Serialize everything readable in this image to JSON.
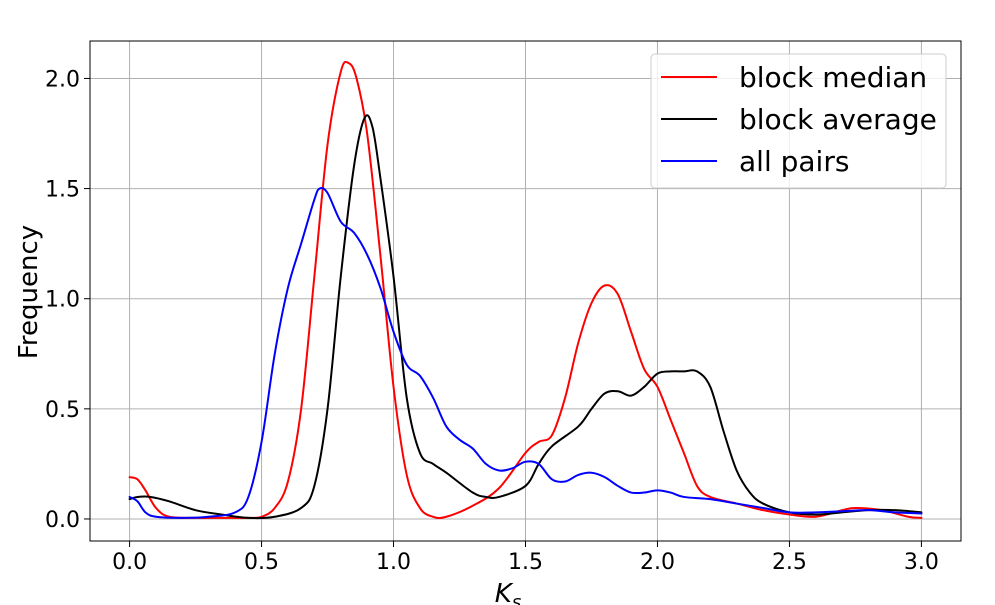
{
  "chart_data": {
    "type": "line",
    "title": "",
    "xlabel": "K",
    "xlabel_subscript": "s",
    "ylabel": "Frequency",
    "xlim": [
      -0.15,
      3.15
    ],
    "ylim": [
      -0.1,
      2.17
    ],
    "xticks": [
      0.0,
      0.5,
      1.0,
      1.5,
      2.0,
      2.5,
      3.0
    ],
    "xtick_labels": [
      "0.0",
      "0.5",
      "1.0",
      "1.5",
      "2.0",
      "2.5",
      "3.0"
    ],
    "yticks": [
      0.0,
      0.5,
      1.0,
      1.5,
      2.0
    ],
    "ytick_labels": [
      "0.0",
      "0.5",
      "1.0",
      "1.5",
      "2.0"
    ],
    "grid": true,
    "legend_position": "top-right",
    "series": [
      {
        "name": "block median",
        "color": "#ff0000",
        "points": [
          [
            0.0,
            0.19
          ],
          [
            0.03,
            0.18
          ],
          [
            0.06,
            0.13
          ],
          [
            0.1,
            0.05
          ],
          [
            0.15,
            0.01
          ],
          [
            0.25,
            0.005
          ],
          [
            0.35,
            0.005
          ],
          [
            0.45,
            0.005
          ],
          [
            0.5,
            0.01
          ],
          [
            0.55,
            0.05
          ],
          [
            0.6,
            0.17
          ],
          [
            0.65,
            0.5
          ],
          [
            0.7,
            1.1
          ],
          [
            0.75,
            1.7
          ],
          [
            0.8,
            2.03
          ],
          [
            0.83,
            2.07
          ],
          [
            0.86,
            2.0
          ],
          [
            0.9,
            1.75
          ],
          [
            0.95,
            1.2
          ],
          [
            1.0,
            0.6
          ],
          [
            1.05,
            0.2
          ],
          [
            1.1,
            0.05
          ],
          [
            1.15,
            0.01
          ],
          [
            1.2,
            0.01
          ],
          [
            1.3,
            0.06
          ],
          [
            1.4,
            0.14
          ],
          [
            1.5,
            0.3
          ],
          [
            1.55,
            0.35
          ],
          [
            1.6,
            0.38
          ],
          [
            1.65,
            0.55
          ],
          [
            1.7,
            0.8
          ],
          [
            1.75,
            0.98
          ],
          [
            1.8,
            1.06
          ],
          [
            1.85,
            1.02
          ],
          [
            1.9,
            0.85
          ],
          [
            1.95,
            0.68
          ],
          [
            2.0,
            0.6
          ],
          [
            2.05,
            0.45
          ],
          [
            2.1,
            0.3
          ],
          [
            2.15,
            0.15
          ],
          [
            2.2,
            0.1
          ],
          [
            2.3,
            0.07
          ],
          [
            2.4,
            0.04
          ],
          [
            2.5,
            0.02
          ],
          [
            2.6,
            0.01
          ],
          [
            2.7,
            0.04
          ],
          [
            2.75,
            0.05
          ],
          [
            2.85,
            0.04
          ],
          [
            2.95,
            0.01
          ],
          [
            3.0,
            0.005
          ]
        ]
      },
      {
        "name": "block average",
        "color": "#000000",
        "points": [
          [
            0.0,
            0.09
          ],
          [
            0.03,
            0.1
          ],
          [
            0.08,
            0.1
          ],
          [
            0.15,
            0.08
          ],
          [
            0.25,
            0.04
          ],
          [
            0.35,
            0.02
          ],
          [
            0.45,
            0.005
          ],
          [
            0.55,
            0.01
          ],
          [
            0.65,
            0.05
          ],
          [
            0.7,
            0.15
          ],
          [
            0.75,
            0.5
          ],
          [
            0.8,
            1.1
          ],
          [
            0.85,
            1.6
          ],
          [
            0.89,
            1.82
          ],
          [
            0.92,
            1.78
          ],
          [
            0.95,
            1.55
          ],
          [
            1.0,
            1.1
          ],
          [
            1.05,
            0.55
          ],
          [
            1.1,
            0.3
          ],
          [
            1.15,
            0.25
          ],
          [
            1.2,
            0.21
          ],
          [
            1.3,
            0.12
          ],
          [
            1.35,
            0.1
          ],
          [
            1.4,
            0.1
          ],
          [
            1.5,
            0.15
          ],
          [
            1.55,
            0.25
          ],
          [
            1.6,
            0.33
          ],
          [
            1.7,
            0.42
          ],
          [
            1.75,
            0.5
          ],
          [
            1.8,
            0.57
          ],
          [
            1.85,
            0.58
          ],
          [
            1.9,
            0.56
          ],
          [
            1.95,
            0.6
          ],
          [
            2.0,
            0.66
          ],
          [
            2.05,
            0.67
          ],
          [
            2.1,
            0.67
          ],
          [
            2.15,
            0.67
          ],
          [
            2.2,
            0.6
          ],
          [
            2.25,
            0.4
          ],
          [
            2.3,
            0.22
          ],
          [
            2.35,
            0.12
          ],
          [
            2.4,
            0.07
          ],
          [
            2.5,
            0.03
          ],
          [
            2.6,
            0.02
          ],
          [
            2.7,
            0.03
          ],
          [
            2.8,
            0.04
          ],
          [
            2.9,
            0.04
          ],
          [
            3.0,
            0.03
          ]
        ]
      },
      {
        "name": "all pairs",
        "color": "#0000ff",
        "points": [
          [
            0.0,
            0.1
          ],
          [
            0.03,
            0.08
          ],
          [
            0.06,
            0.03
          ],
          [
            0.1,
            0.01
          ],
          [
            0.2,
            0.005
          ],
          [
            0.3,
            0.01
          ],
          [
            0.4,
            0.03
          ],
          [
            0.45,
            0.1
          ],
          [
            0.5,
            0.35
          ],
          [
            0.55,
            0.75
          ],
          [
            0.6,
            1.05
          ],
          [
            0.65,
            1.25
          ],
          [
            0.7,
            1.45
          ],
          [
            0.72,
            1.5
          ],
          [
            0.75,
            1.48
          ],
          [
            0.8,
            1.35
          ],
          [
            0.85,
            1.3
          ],
          [
            0.9,
            1.2
          ],
          [
            0.95,
            1.05
          ],
          [
            1.0,
            0.85
          ],
          [
            1.05,
            0.7
          ],
          [
            1.1,
            0.65
          ],
          [
            1.15,
            0.55
          ],
          [
            1.2,
            0.42
          ],
          [
            1.25,
            0.36
          ],
          [
            1.3,
            0.32
          ],
          [
            1.35,
            0.25
          ],
          [
            1.4,
            0.22
          ],
          [
            1.45,
            0.23
          ],
          [
            1.5,
            0.26
          ],
          [
            1.55,
            0.25
          ],
          [
            1.6,
            0.18
          ],
          [
            1.65,
            0.17
          ],
          [
            1.7,
            0.2
          ],
          [
            1.75,
            0.21
          ],
          [
            1.8,
            0.19
          ],
          [
            1.85,
            0.15
          ],
          [
            1.9,
            0.12
          ],
          [
            1.95,
            0.12
          ],
          [
            2.0,
            0.13
          ],
          [
            2.05,
            0.12
          ],
          [
            2.1,
            0.1
          ],
          [
            2.2,
            0.09
          ],
          [
            2.3,
            0.07
          ],
          [
            2.4,
            0.05
          ],
          [
            2.5,
            0.03
          ],
          [
            2.6,
            0.03
          ],
          [
            2.7,
            0.035
          ],
          [
            2.8,
            0.04
          ],
          [
            2.9,
            0.03
          ],
          [
            3.0,
            0.025
          ]
        ]
      }
    ]
  }
}
